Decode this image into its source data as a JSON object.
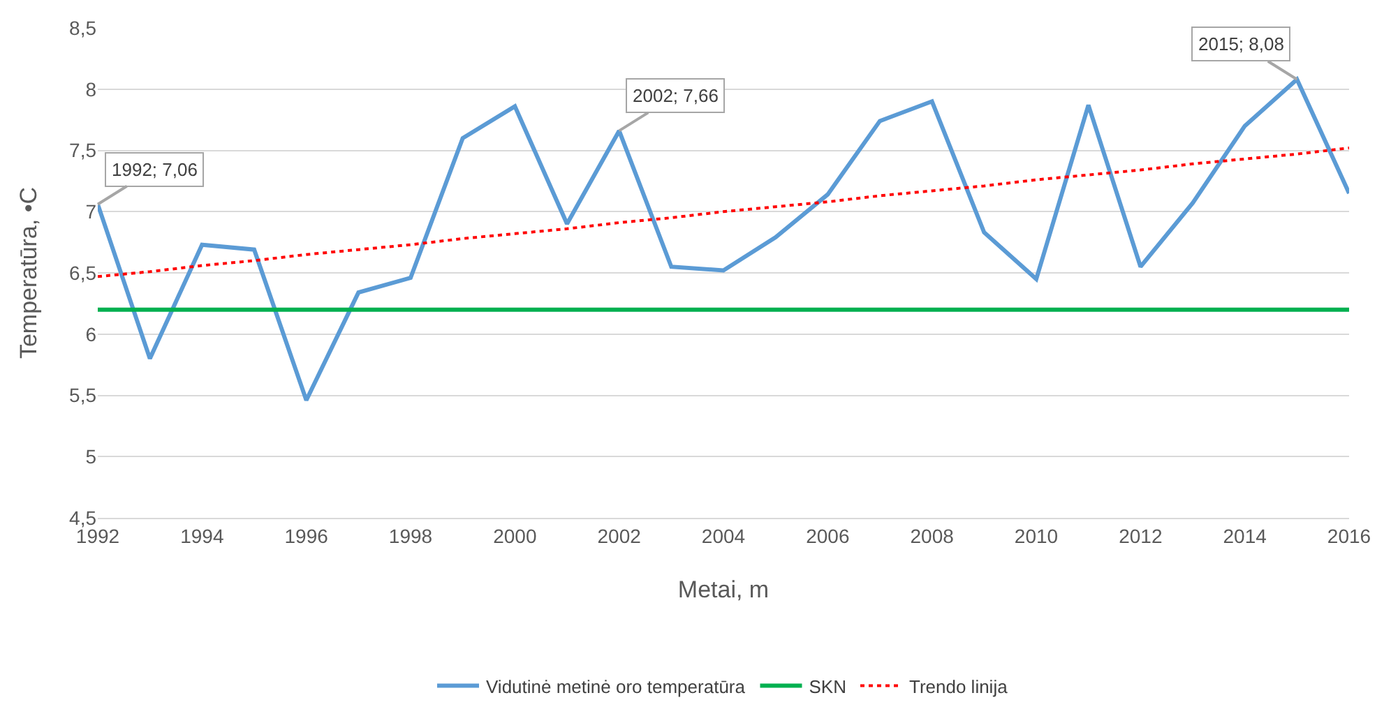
{
  "chart_data": {
    "type": "line",
    "xlabel": "Metai, m",
    "ylabel": "Temperatūra, •C",
    "xlim": [
      1992,
      2016
    ],
    "xticks": [
      1992,
      1994,
      1996,
      1998,
      2000,
      2002,
      2004,
      2006,
      2008,
      2010,
      2012,
      2014,
      2016
    ],
    "ylim": [
      4.5,
      8.5
    ],
    "yticks": [
      {
        "value": 4.5,
        "label": "4,5"
      },
      5,
      {
        "value": 5.5,
        "label": "5,5"
      },
      6,
      {
        "value": 6.5,
        "label": "6,5"
      },
      7,
      {
        "value": 7.5,
        "label": "7,5"
      },
      8,
      {
        "value": 8.5,
        "label": "8,5"
      }
    ],
    "x": [
      1992,
      1993,
      1994,
      1995,
      1996,
      1997,
      1998,
      1999,
      2000,
      2001,
      2002,
      2003,
      2004,
      2005,
      2006,
      2007,
      2008,
      2009,
      2010,
      2011,
      2012,
      2013,
      2014,
      2015,
      2016
    ],
    "series": [
      {
        "name": "Vidutinė metinė oro temperatūra",
        "color": "#5b9bd5",
        "values": [
          7.06,
          5.8,
          6.73,
          6.69,
          5.46,
          6.34,
          6.46,
          7.6,
          7.86,
          6.9,
          7.66,
          6.55,
          6.52,
          6.79,
          7.14,
          7.74,
          7.9,
          6.83,
          6.45,
          7.87,
          6.55,
          7.07,
          7.7,
          8.08,
          7.15
        ]
      },
      {
        "name": "SKN",
        "color": "#00b050",
        "values": [
          6.2,
          6.2,
          6.2,
          6.2,
          6.2,
          6.2,
          6.2,
          6.2,
          6.2,
          6.2,
          6.2,
          6.2,
          6.2,
          6.2,
          6.2,
          6.2,
          6.2,
          6.2,
          6.2,
          6.2,
          6.2,
          6.2,
          6.2,
          6.2,
          6.2
        ]
      },
      {
        "name": "Trendo linija",
        "color": "#ff0000",
        "line_style": "dotted",
        "values": [
          6.47,
          6.51,
          6.56,
          6.6,
          6.65,
          6.69,
          6.73,
          6.78,
          6.82,
          6.86,
          6.91,
          6.95,
          7.0,
          7.04,
          7.08,
          7.13,
          7.17,
          7.21,
          7.26,
          7.3,
          7.34,
          7.39,
          7.43,
          7.47,
          7.52
        ]
      }
    ],
    "annotations": [
      {
        "text": "1992; 7,06",
        "x": 1992,
        "y": 7.06
      },
      {
        "text": "2002; 7,66",
        "x": 2002,
        "y": 7.66
      },
      {
        "text": "2015; 8,08",
        "x": 2015,
        "y": 8.08
      }
    ],
    "grid": "y",
    "legend": "bottom",
    "marker": "none"
  }
}
